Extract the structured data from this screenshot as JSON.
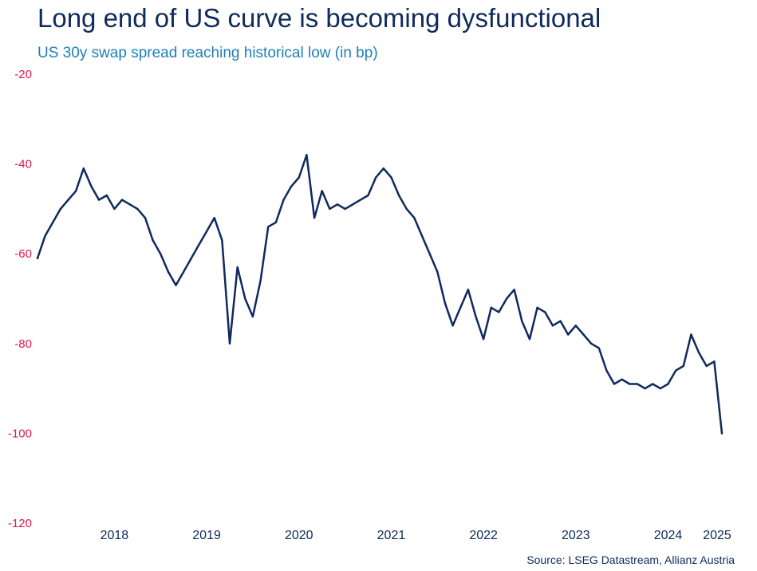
{
  "title": "Long end of US curve is becoming dysfunctional",
  "subtitle": "US 30y swap spread reaching historical low (in bp)",
  "source": "Source: LSEG Datastream, Allianz Austria",
  "colors": {
    "line": "#0f2a5c",
    "y_tick": "#e5194b",
    "title": "#0f2a5c",
    "subtitle": "#1f7fb8"
  },
  "chart_data": {
    "type": "line",
    "grid": false,
    "ylim": [
      -120,
      -20
    ],
    "yticks": [
      -20,
      -40,
      -60,
      -80,
      -100,
      -120
    ],
    "xticks": [
      "2018",
      "2019",
      "2020",
      "2021",
      "2022",
      "2023",
      "2024",
      "2025"
    ],
    "x": [
      "2017-09",
      "2017-10",
      "2017-11",
      "2017-12",
      "2018-01",
      "2018-02",
      "2018-03",
      "2018-04",
      "2018-05",
      "2018-06",
      "2018-07",
      "2018-08",
      "2018-09",
      "2018-10",
      "2018-11",
      "2018-12",
      "2019-01",
      "2019-02",
      "2019-03",
      "2019-04",
      "2019-05",
      "2019-06",
      "2019-07",
      "2019-08",
      "2019-09",
      "2019-10",
      "2019-11",
      "2019-12",
      "2020-01",
      "2020-02",
      "2020-03",
      "2020-04",
      "2020-05",
      "2020-06",
      "2020-07",
      "2020-08",
      "2020-09",
      "2020-10",
      "2020-11",
      "2020-12",
      "2021-01",
      "2021-02",
      "2021-03",
      "2021-04",
      "2021-05",
      "2021-06",
      "2021-07",
      "2021-08",
      "2021-09",
      "2021-10",
      "2021-11",
      "2021-12",
      "2022-01",
      "2022-02",
      "2022-03",
      "2022-04",
      "2022-05",
      "2022-06",
      "2022-07",
      "2022-08",
      "2022-09",
      "2022-10",
      "2022-11",
      "2022-12",
      "2023-01",
      "2023-02",
      "2023-03",
      "2023-04",
      "2023-05",
      "2023-06",
      "2023-07",
      "2023-08",
      "2023-09",
      "2023-10",
      "2023-11",
      "2023-12",
      "2024-01",
      "2024-02",
      "2024-03",
      "2024-04",
      "2024-05",
      "2024-06",
      "2024-07",
      "2024-08",
      "2024-09",
      "2024-10",
      "2024-11",
      "2024-12",
      "2025-01",
      "2025-02"
    ],
    "series": [
      {
        "values": [
          -61,
          -56,
          -53,
          -50,
          -48,
          -46,
          -41,
          -45,
          -48,
          -47,
          -50,
          -48,
          -49,
          -50,
          -52,
          -57,
          -60,
          -64,
          -67,
          -64,
          -61,
          -58,
          -55,
          -52,
          -57,
          -80,
          -63,
          -70,
          -74,
          -66,
          -54,
          -53,
          -48,
          -45,
          -43,
          -38,
          -52,
          -46,
          -50,
          -49,
          -50,
          -49,
          -48,
          -47,
          -43,
          -41,
          -43,
          -47,
          -50,
          -52,
          -56,
          -60,
          -64,
          -71,
          -76,
          -72,
          -68,
          -74,
          -79,
          -72,
          -73,
          -70,
          -68,
          -75,
          -79,
          -72,
          -73,
          -76,
          -75,
          -78,
          -76,
          -78,
          -80,
          -81,
          -86,
          -89,
          -88,
          -89,
          -89,
          -90,
          -89,
          -90,
          -89,
          -86,
          -85,
          -78,
          -82,
          -85,
          -84,
          -100
        ]
      }
    ]
  }
}
